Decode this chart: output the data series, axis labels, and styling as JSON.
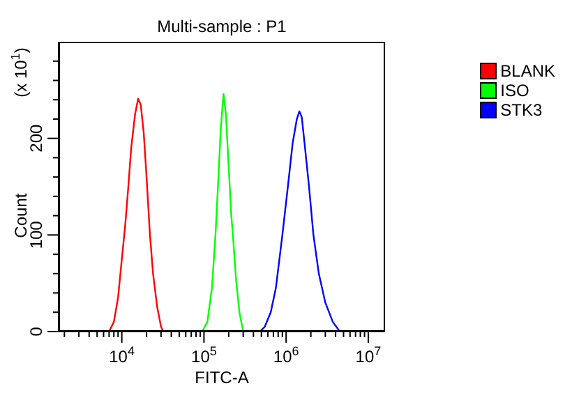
{
  "chart_data": {
    "type": "line",
    "title": "Multi-sample : P1",
    "xlabel": "FITC-A",
    "ylabel": "Count",
    "annotations": [
      "(x 10$^{1}$)"
    ],
    "log": "x",
    "xlim": [
      1700,
      16000000
    ],
    "xticks": [
      {
        "value": 2000,
        "label": null
      },
      {
        "value": 3000,
        "label": null
      },
      {
        "value": 4000,
        "label": null
      },
      {
        "value": 5000,
        "label": null
      },
      {
        "value": 6000,
        "label": null
      },
      {
        "value": 7000,
        "label": null
      },
      {
        "value": 8000,
        "label": null
      },
      {
        "value": 9000,
        "label": null
      },
      {
        "value": 10000,
        "label": "10$^{4}$"
      },
      {
        "value": 20000,
        "label": null
      },
      {
        "value": 30000,
        "label": null
      },
      {
        "value": 40000,
        "label": null
      },
      {
        "value": 50000,
        "label": null
      },
      {
        "value": 60000,
        "label": null
      },
      {
        "value": 70000,
        "label": null
      },
      {
        "value": 80000,
        "label": null
      },
      {
        "value": 90000,
        "label": null
      },
      {
        "value": 100000,
        "label": "10$^{5}$"
      },
      {
        "value": 200000,
        "label": null
      },
      {
        "value": 300000,
        "label": null
      },
      {
        "value": 400000,
        "label": null
      },
      {
        "value": 500000,
        "label": null
      },
      {
        "value": 600000,
        "label": null
      },
      {
        "value": 700000,
        "label": null
      },
      {
        "value": 800000,
        "label": null
      },
      {
        "value": 900000,
        "label": null
      },
      {
        "value": 1000000,
        "label": "10$^{6}$"
      },
      {
        "value": 2000000,
        "label": null
      },
      {
        "value": 3000000,
        "label": null
      },
      {
        "value": 4000000,
        "label": null
      },
      {
        "value": 5000000,
        "label": null
      },
      {
        "value": 6000000,
        "label": null
      },
      {
        "value": 7000000,
        "label": null
      },
      {
        "value": 8000000,
        "label": null
      },
      {
        "value": 9000000,
        "label": null
      },
      {
        "value": 10000000,
        "label": "10$^{7}$"
      }
    ],
    "ylim": [
      0,
      300
    ],
    "yticks": [
      0,
      {
        "value": 20,
        "label": null
      },
      {
        "value": 40,
        "label": null
      },
      {
        "value": 60,
        "label": null
      },
      {
        "value": 80,
        "label": null
      },
      100,
      {
        "value": 120,
        "label": null
      },
      {
        "value": 140,
        "label": null
      },
      {
        "value": 160,
        "label": null
      },
      {
        "value": 180,
        "label": null
      },
      200,
      {
        "value": 220,
        "label": null
      },
      {
        "value": 240,
        "label": null
      },
      {
        "value": 260,
        "label": null
      },
      {
        "value": 280,
        "label": null
      }
    ],
    "legend": "right",
    "marker": "none",
    "line_style": "solid",
    "series": [
      {
        "name": "BLANK",
        "color": "#ff0000",
        "x": [
          7000,
          8000,
          9000,
          10000,
          11000,
          12000,
          13000,
          14500,
          15800,
          17000,
          18500,
          20000,
          22000,
          24000,
          27000,
          30000,
          32000
        ],
        "values": [
          0,
          10,
          35,
          75,
          110,
          150,
          190,
          225,
          241,
          235,
          205,
          160,
          100,
          60,
          25,
          5,
          0
        ]
      },
      {
        "name": "ISO",
        "color": "#00ff00",
        "x": [
          95000,
          110000,
          125000,
          138000,
          150000,
          160000,
          173000,
          185000,
          200000,
          215000,
          225000,
          245000,
          270000,
          300000
        ],
        "values": [
          0,
          10,
          45,
          100,
          160,
          210,
          246,
          225,
          170,
          120,
          100,
          55,
          20,
          0
        ]
      },
      {
        "name": "STK3",
        "color": "#0000ff",
        "x": [
          480000,
          550000,
          650000,
          750000,
          900000,
          1050000,
          1200000,
          1350000,
          1450000,
          1550000,
          1700000,
          1900000,
          2150000,
          2500000,
          3000000,
          3700000,
          4500000
        ],
        "values": [
          0,
          5,
          20,
          45,
          100,
          150,
          195,
          220,
          228,
          222,
          190,
          150,
          100,
          60,
          30,
          10,
          0
        ]
      }
    ]
  }
}
